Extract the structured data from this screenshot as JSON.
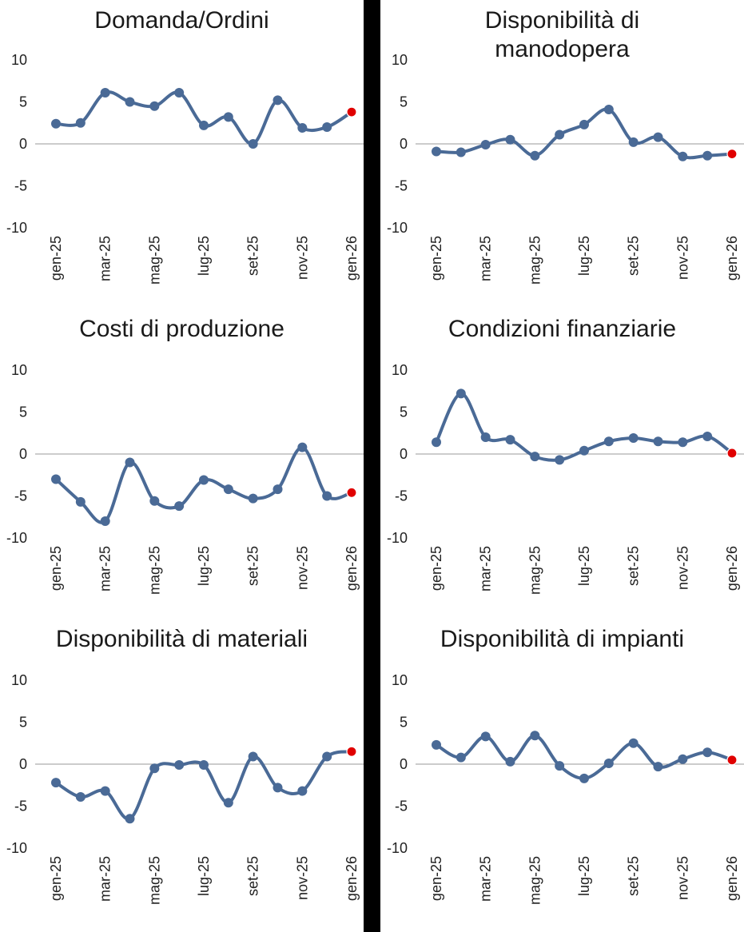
{
  "colors": {
    "line": "#4a6a96",
    "last_point": "#e00000",
    "axis": "#9a9a9a",
    "divider": "#000000"
  },
  "chart_data": [
    {
      "type": "line",
      "title": "Domanda/Ordini",
      "categories": [
        "gen-25",
        "feb-25",
        "mar-25",
        "apr-25",
        "mag-25",
        "giu-25",
        "lug-25",
        "ago-25",
        "set-25",
        "ott-25",
        "nov-25",
        "dic-25",
        "gen-26"
      ],
      "tick_labels": [
        "gen-25",
        "mar-25",
        "mag-25",
        "lug-25",
        "set-25",
        "nov-25",
        "gen-26"
      ],
      "values": [
        2.4,
        2.5,
        6.1,
        5.0,
        4.5,
        6.1,
        2.2,
        3.2,
        0.0,
        5.2,
        1.9,
        2.0,
        3.8
      ],
      "ylim": [
        -10,
        10
      ],
      "yticks": [
        "10",
        "5",
        "0",
        "-5",
        "-10"
      ]
    },
    {
      "type": "line",
      "title": "Disponibilità di manodopera",
      "title_lines": [
        "Disponibilità di",
        "manodopera"
      ],
      "categories": [
        "gen-25",
        "feb-25",
        "mar-25",
        "apr-25",
        "mag-25",
        "giu-25",
        "lug-25",
        "ago-25",
        "set-25",
        "ott-25",
        "nov-25",
        "dic-25",
        "gen-26"
      ],
      "tick_labels": [
        "gen-25",
        "mar-25",
        "mag-25",
        "lug-25",
        "set-25",
        "nov-25",
        "gen-26"
      ],
      "values": [
        -0.9,
        -1.0,
        -0.1,
        0.5,
        -1.4,
        1.1,
        2.3,
        4.1,
        0.2,
        0.8,
        -1.5,
        -1.4,
        -1.2
      ],
      "ylim": [
        -10,
        10
      ],
      "yticks": [
        "10",
        "5",
        "0",
        "-5",
        "-10"
      ]
    },
    {
      "type": "line",
      "title": "Costi di produzione",
      "categories": [
        "gen-25",
        "feb-25",
        "mar-25",
        "apr-25",
        "mag-25",
        "giu-25",
        "lug-25",
        "ago-25",
        "set-25",
        "ott-25",
        "nov-25",
        "dic-25",
        "gen-26"
      ],
      "tick_labels": [
        "gen-25",
        "mar-25",
        "mag-25",
        "lug-25",
        "set-25",
        "nov-25",
        "gen-26"
      ],
      "values": [
        -3.0,
        -5.7,
        -8.0,
        -1.0,
        -5.6,
        -6.2,
        -3.1,
        -4.2,
        -5.3,
        -4.2,
        0.8,
        -5.0,
        -4.6
      ],
      "ylim": [
        -10,
        10
      ],
      "yticks": [
        "10",
        "5",
        "0",
        "-5",
        "-10"
      ]
    },
    {
      "type": "line",
      "title": "Condizioni finanziarie",
      "categories": [
        "gen-25",
        "feb-25",
        "mar-25",
        "apr-25",
        "mag-25",
        "giu-25",
        "lug-25",
        "ago-25",
        "set-25",
        "ott-25",
        "nov-25",
        "dic-25",
        "gen-26"
      ],
      "tick_labels": [
        "gen-25",
        "mar-25",
        "mag-25",
        "lug-25",
        "set-25",
        "nov-25",
        "gen-26"
      ],
      "values": [
        1.4,
        7.2,
        2.0,
        1.7,
        -0.3,
        -0.7,
        0.4,
        1.5,
        1.9,
        1.5,
        1.4,
        2.1,
        0.1
      ],
      "ylim": [
        -10,
        10
      ],
      "yticks": [
        "10",
        "5",
        "0",
        "-5",
        "-10"
      ]
    },
    {
      "type": "line",
      "title": "Disponibilità di materiali",
      "categories": [
        "gen-25",
        "feb-25",
        "mar-25",
        "apr-25",
        "mag-25",
        "giu-25",
        "lug-25",
        "ago-25",
        "set-25",
        "ott-25",
        "nov-25",
        "dic-25",
        "gen-26"
      ],
      "tick_labels": [
        "gen-25",
        "mar-25",
        "mag-25",
        "lug-25",
        "set-25",
        "nov-25",
        "gen-26"
      ],
      "values": [
        -2.2,
        -3.9,
        -3.2,
        -6.5,
        -0.5,
        -0.1,
        -0.1,
        -4.6,
        0.9,
        -2.8,
        -3.2,
        0.9,
        1.5
      ],
      "ylim": [
        -10,
        10
      ],
      "yticks": [
        "10",
        "5",
        "0",
        "-5",
        "-10"
      ]
    },
    {
      "type": "line",
      "title": "Disponibilità di impianti",
      "categories": [
        "gen-25",
        "feb-25",
        "mar-25",
        "apr-25",
        "mag-25",
        "giu-25",
        "lug-25",
        "ago-25",
        "set-25",
        "ott-25",
        "nov-25",
        "dic-25",
        "gen-26"
      ],
      "tick_labels": [
        "gen-25",
        "mar-25",
        "mag-25",
        "lug-25",
        "set-25",
        "nov-25",
        "gen-26"
      ],
      "values": [
        2.3,
        0.8,
        3.3,
        0.3,
        3.4,
        -0.2,
        -1.7,
        0.1,
        2.5,
        -0.3,
        0.6,
        1.4,
        0.5
      ],
      "ylim": [
        -10,
        10
      ],
      "yticks": [
        "10",
        "5",
        "0",
        "-5",
        "-10"
      ]
    }
  ]
}
